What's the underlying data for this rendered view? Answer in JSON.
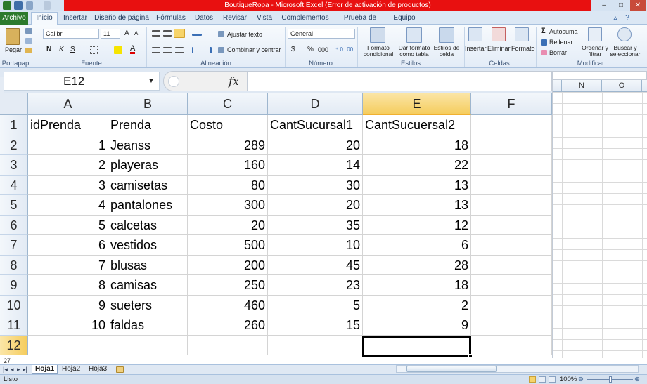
{
  "window": {
    "title": "BoutiqueRopa - Microsoft Excel (Error de activación de productos)"
  },
  "tabs": [
    "Archivo",
    "Inicio",
    "Insertar",
    "Diseño de página",
    "Fórmulas",
    "Datos",
    "Revisar",
    "Vista",
    "Complementos",
    "Prueba de carga",
    "Equipo"
  ],
  "ribbon": {
    "clipboard": {
      "paste": "Pegar",
      "group": "Portapap..."
    },
    "font": {
      "family": "Calibri",
      "size": "11",
      "bold": "N",
      "italic": "K",
      "underline": "S",
      "group": "Fuente"
    },
    "alignment": {
      "wrap": "Ajustar texto",
      "merge": "Combinar y centrar",
      "group": "Alineación"
    },
    "number": {
      "format": "General",
      "currency": "$",
      "percent": "%",
      "thousands": "000",
      "group": "Número"
    },
    "styles": {
      "conditional": "Formato condicional",
      "as_table": "Dar formato como tabla",
      "cell_styles": "Estilos de celda",
      "group": "Estilos"
    },
    "cells": {
      "insert": "Insertar",
      "delete": "Eliminar",
      "format": "Formato",
      "group": "Celdas"
    },
    "editing": {
      "autosum": "Autosuma",
      "fill": "Rellenar",
      "clear": "Borrar",
      "sort": "Ordenar y filtrar",
      "find": "Buscar y seleccionar",
      "group": "Modificar"
    }
  },
  "formula_bar": {
    "name_box": "E12",
    "fx": "fx",
    "value": ""
  },
  "columns": [
    "A",
    "B",
    "C",
    "D",
    "E",
    "F"
  ],
  "right_columns": [
    "N",
    "O"
  ],
  "rows": [
    "1",
    "2",
    "3",
    "4",
    "5",
    "6",
    "7",
    "8",
    "9",
    "10",
    "11",
    "12"
  ],
  "header_row": [
    "idPrenda",
    "Prenda",
    "Costo",
    "CantSucursal1",
    "CantSucuersal2"
  ],
  "data_rows": [
    [
      "1",
      "Jeanss",
      "289",
      "20",
      "18"
    ],
    [
      "2",
      "playeras",
      "160",
      "14",
      "22"
    ],
    [
      "3",
      "camisetas",
      "80",
      "30",
      "13"
    ],
    [
      "4",
      "pantalones",
      "300",
      "20",
      "13"
    ],
    [
      "5",
      "calcetas",
      "20",
      "35",
      "12"
    ],
    [
      "6",
      "vestidos",
      "500",
      "10",
      "6"
    ],
    [
      "7",
      "blusas",
      "200",
      "45",
      "28"
    ],
    [
      "8",
      "camisas",
      "250",
      "23",
      "18"
    ],
    [
      "9",
      "sueters",
      "460",
      "5",
      "2"
    ],
    [
      "10",
      "faldas",
      "260",
      "15",
      "9"
    ]
  ],
  "selected_cell": "E12",
  "row_27_label": "27",
  "sheets": [
    "Hoja1",
    "Hoja2",
    "Hoja3"
  ],
  "status": {
    "mode": "Listo",
    "zoom": "100%"
  }
}
